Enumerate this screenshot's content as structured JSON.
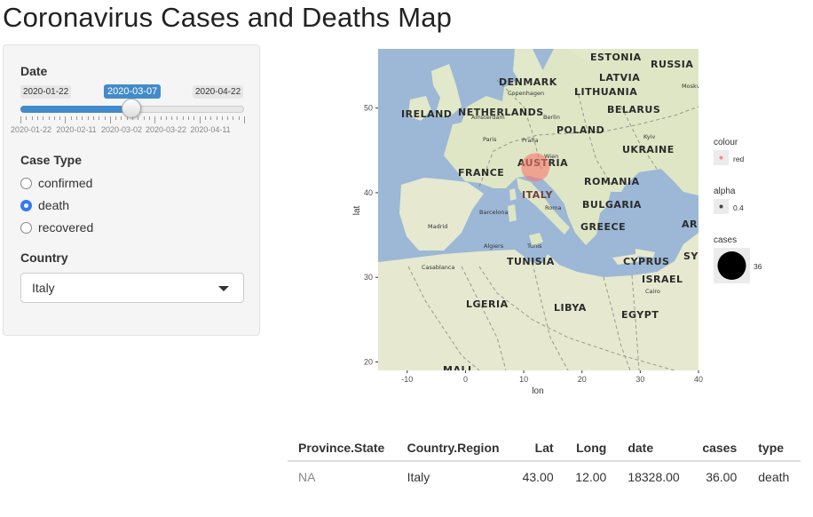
{
  "title": "Coronavirus Cases and Deaths Map",
  "sidebar": {
    "date": {
      "label": "Date",
      "min": "2020-01-22",
      "max": "2020-04-22",
      "value": "2020-03-07",
      "position": 0.5,
      "grid": [
        "2020-01-22",
        "2020-02-11",
        "2020-03-02",
        "2020-03-22",
        "2020-04-11"
      ]
    },
    "case_type": {
      "label": "Case Type",
      "options": [
        "confirmed",
        "death",
        "recovered"
      ],
      "selected": "death"
    },
    "country": {
      "label": "Country",
      "value": "Italy"
    }
  },
  "map": {
    "country_labels": [
      "ESTONIA",
      "RUSSIA",
      "LATVIA",
      "DENMARK",
      "LITHUANIA",
      "IRELAND",
      "NETHERLANDS",
      "BELARUS",
      "POLAND",
      "UKRAINE",
      "FRANCE",
      "AUSTRIA",
      "ROMANIA",
      "ITALY",
      "BULGARIA",
      "GREECE",
      "TUNISIA",
      "CYPRUS",
      "ISRAEL",
      "LGERIA",
      "LIBYA",
      "EGYPT",
      "MALI",
      "ARM",
      "SYR"
    ],
    "city_labels": [
      "Copenhagen",
      "Amsterdam",
      "Berlin",
      "Paris",
      "Praha",
      "Wien",
      "Madrid",
      "Barcelona",
      "Roma",
      "Tunis",
      "Algiers",
      "Casablanca",
      "Cairo",
      "Moskva",
      "Kyiv"
    ]
  },
  "chart_data": {
    "type": "scatter",
    "xlabel": "lon",
    "ylabel": "lat",
    "x_ticks": [
      -10,
      0,
      10,
      20,
      30,
      40
    ],
    "y_ticks": [
      20,
      30,
      40,
      50
    ],
    "xlim": [
      -15,
      40
    ],
    "ylim": [
      19,
      57
    ],
    "grid": false,
    "points": [
      {
        "lon": 12,
        "lat": 43,
        "cases": 36
      }
    ],
    "legend": {
      "placement": "right",
      "colour": {
        "title": "colour",
        "label": "red",
        "color": "#f8766d"
      },
      "alpha": {
        "title": "alpha",
        "label": "0.4"
      },
      "cases": {
        "title": "cases",
        "label": "36"
      }
    }
  },
  "table": {
    "headers": [
      "Province.State",
      "Country.Region",
      "Lat",
      "Long",
      "date",
      "cases",
      "type"
    ],
    "rows": [
      [
        "NA",
        "Italy",
        "43.00",
        "12.00",
        "18328.00",
        "36.00",
        "death"
      ]
    ]
  },
  "colors": {
    "accent": "#428bca",
    "radio_checked": "#3478f6",
    "sea": "#9cb8d6",
    "land": "#e6e9cf",
    "marker": "#f8766d"
  }
}
